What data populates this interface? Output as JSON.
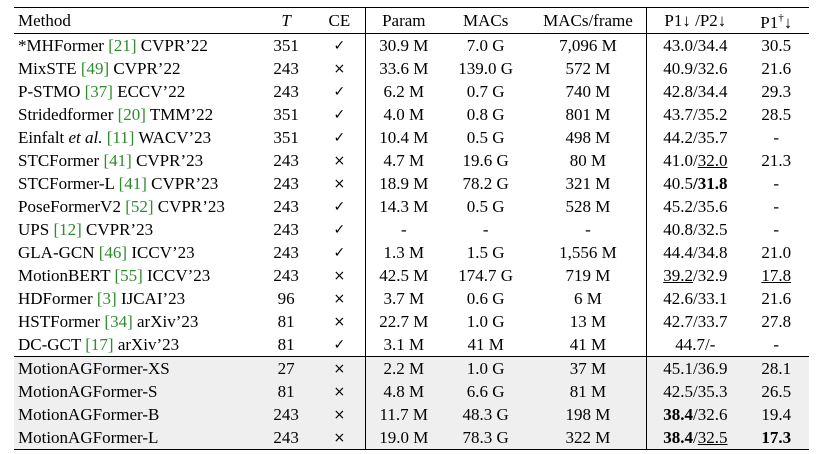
{
  "headers": {
    "method": "Method",
    "t": "T",
    "ce": "CE",
    "param": "Param",
    "macs": "MACs",
    "macs_frame": "MACs/frame",
    "p12": "P1↓ /P2↓",
    "p1d_a": "P1",
    "p1d_sup": "†",
    "p1d_b": "↓"
  },
  "rows": [
    {
      "name": "*MHFormer ",
      "cite": "[21]",
      "venue": " CVPR’22",
      "t": "351",
      "ce": "✓",
      "param": "30.9 M",
      "macs": "7.0 G",
      "mpf": "7,096 M",
      "p1": "43.0",
      "p2": "34.4",
      "pd": "30.5"
    },
    {
      "name": "MixSTE ",
      "cite": "[49]",
      "venue": " CVPR’22",
      "t": "243",
      "ce": "×",
      "param": "33.6 M",
      "macs": "139.0 G",
      "mpf": "572 M",
      "p1": "40.9",
      "p2": "32.6",
      "pd": "21.6"
    },
    {
      "name": "P-STMO ",
      "cite": "[37]",
      "venue": " ECCV’22",
      "t": "243",
      "ce": "✓",
      "param": "6.2 M",
      "macs": "0.7 G",
      "mpf": "740 M",
      "p1": "42.8",
      "p2": "34.4",
      "pd": "29.3"
    },
    {
      "name": "Stridedformer ",
      "cite": "[20]",
      "venue": " TMM’22",
      "t": "351",
      "ce": "✓",
      "param": "4.0 M",
      "macs": "0.8 G",
      "mpf": "801 M",
      "p1": "43.7",
      "p2": "35.2",
      "pd": "28.5"
    },
    {
      "name": "Einfalt ",
      "name_it": "et al.",
      "cite": "[11]",
      "venue": " WACV’23",
      "t": "351",
      "ce": "✓",
      "param": "10.4 M",
      "macs": "0.5 G",
      "mpf": "498 M",
      "p1": "44.2",
      "p2": "35.7",
      "pd": "-"
    },
    {
      "name": "STCFormer ",
      "cite": "[41]",
      "venue": " CVPR’23",
      "t": "243",
      "ce": "×",
      "param": "4.7 M",
      "macs": "19.6 G",
      "mpf": "80 M",
      "p1": "41.0",
      "p2": "32.0",
      "pd": "21.3",
      "p2u": true
    },
    {
      "name": "STCFormer-L ",
      "cite": "[41]",
      "venue": " CVPR’23",
      "t": "243",
      "ce": "×",
      "param": "18.9 M",
      "macs": "78.2 G",
      "mpf": "321 M",
      "p1": "40.5",
      "p2": "31.8",
      "pd": "-",
      "p2b": true
    },
    {
      "name": "PoseFormerV2 ",
      "cite": "[52]",
      "venue": " CVPR’23",
      "t": "243",
      "ce": "✓",
      "param": "14.3 M",
      "macs": "0.5 G",
      "mpf": "528 M",
      "p1": "45.2",
      "p2": "35.6",
      "pd": "-"
    },
    {
      "name": "UPS ",
      "cite": "[12]",
      "venue": " CVPR’23",
      "t": "243",
      "ce": "✓",
      "param": "-",
      "macs": "-",
      "mpf": "-",
      "p1": "40.8",
      "p2": "32.5",
      "pd": "-"
    },
    {
      "name": "GLA-GCN ",
      "cite": "[46]",
      "venue": " ICCV’23",
      "t": "243",
      "ce": "✓",
      "param": "1.3 M",
      "macs": "1.5 G",
      "mpf": "1,556 M",
      "p1": "44.4",
      "p2": "34.8",
      "pd": "21.0"
    },
    {
      "name": "MotionBERT ",
      "cite": "[55]",
      "venue": " ICCV’23",
      "t": "243",
      "ce": "×",
      "param": "42.5 M",
      "macs": "174.7 G",
      "mpf": "719 M",
      "p1": "39.2",
      "p2": "32.9",
      "pd": "17.8",
      "p1u": true,
      "pdu": true
    },
    {
      "name": "HDFormer ",
      "cite": "[3]",
      "venue": " IJCAI’23",
      "t": "96",
      "ce": "×",
      "param": "3.7 M",
      "macs": "0.6 G",
      "mpf": "6 M",
      "p1": "42.6",
      "p2": "33.1",
      "pd": "21.6"
    },
    {
      "name": "HSTFormer ",
      "cite": "[34]",
      "venue": " arXiv’23",
      "t": "81",
      "ce": "×",
      "param": "22.7 M",
      "macs": "1.0 G",
      "mpf": "13 M",
      "p1": "42.7",
      "p2": "33.7",
      "pd": "27.8"
    },
    {
      "name": "DC-GCT ",
      "cite": "[17]",
      "venue": " arXiv’23",
      "t": "81",
      "ce": "✓",
      "param": "3.1 M",
      "macs": "41 M",
      "mpf": "41 M",
      "p1": "44.7",
      "p2": "-",
      "pd": "-"
    }
  ],
  "ours": [
    {
      "name": "MotionAGFormer-XS",
      "t": "27",
      "ce": "×",
      "param": "2.2 M",
      "macs": "1.0 G",
      "mpf": "37 M",
      "p1": "45.1",
      "p2": "36.9",
      "pd": "28.1"
    },
    {
      "name": "MotionAGFormer-S",
      "t": "81",
      "ce": "×",
      "param": "4.8 M",
      "macs": "6.6 G",
      "mpf": "81 M",
      "p1": "42.5",
      "p2": "35.3",
      "pd": "26.5"
    },
    {
      "name": "MotionAGFormer-B",
      "t": "243",
      "ce": "×",
      "param": "11.7 M",
      "macs": "48.3 G",
      "mpf": "198 M",
      "p1": "38.4",
      "p2": "32.6",
      "pd": "19.4",
      "p1b": true
    },
    {
      "name": "MotionAGFormer-L",
      "t": "243",
      "ce": "×",
      "param": "19.0 M",
      "macs": "78.3 G",
      "mpf": "322 M",
      "p1": "38.4",
      "p2": "32.5",
      "pd": "17.3",
      "p1b": true,
      "p2u": true,
      "pdb": true
    }
  ]
}
